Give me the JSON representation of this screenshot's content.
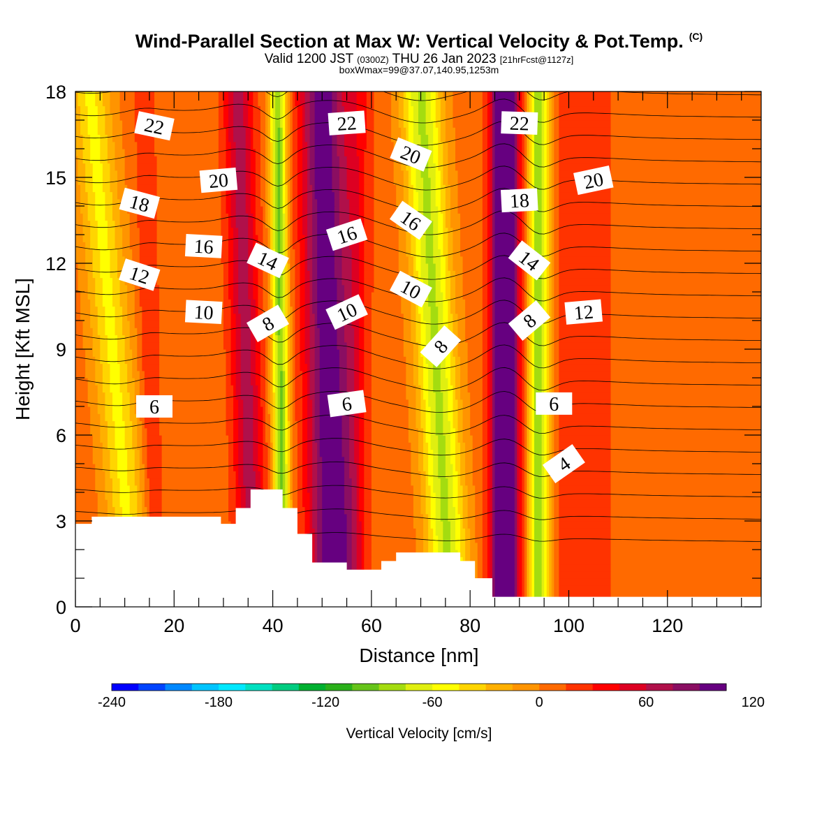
{
  "title": {
    "main": "Wind-Parallel Section at Max W: Vertical Velocity & Pot.Temp.",
    "copyright": "(C)",
    "valid_prefix": "Valid 1200 JST",
    "zulu": "(0300Z)",
    "valid_date": "THU 26 Jan 2023",
    "forecast": "[21hrFcst@1127z]",
    "boxinfo": "boxWmax=99@37.07,140.95,1253m"
  },
  "colorbar": {
    "label": "Vertical Velocity [cm/s]",
    "tick_labels": [
      "-240",
      "-180",
      "-120",
      "-60",
      "0",
      "60",
      "120"
    ],
    "min": -240,
    "step": 15,
    "colors": [
      "#0000ff",
      "#0044ff",
      "#0088ff",
      "#00c4ff",
      "#00e8ff",
      "#00e0c0",
      "#00cc80",
      "#00b030",
      "#2ab01a",
      "#66c41a",
      "#a4dc10",
      "#e0ef10",
      "#ffff00",
      "#ffd500",
      "#ffb000",
      "#ff9400",
      "#ff6a00",
      "#ff3300",
      "#ff0000",
      "#dd0022",
      "#b0104a",
      "#8a0e62",
      "#660080"
    ]
  },
  "chart_data": {
    "type": "heatmap",
    "title": "Wind-Parallel Section at Max W: Vertical Velocity & Pot.Temp.",
    "xlabel": "Distance [nm]",
    "ylabel": "Height [Kft MSL]",
    "xlim": [
      0,
      139
    ],
    "ylim": [
      0,
      18
    ],
    "xticks": [
      0,
      20,
      40,
      60,
      80,
      100,
      120
    ],
    "yticks": [
      0,
      3,
      6,
      9,
      12,
      15,
      18
    ],
    "fill_variable": "Vertical Velocity [cm/s]",
    "background_value": 7,
    "velocity_bands": [
      {
        "x_top": 33,
        "x_bottom": 36,
        "sigma": 3,
        "peak": 60
      },
      {
        "x_top": 41,
        "x_bottom": 42,
        "sigma": 1.7,
        "peak": -100
      },
      {
        "x_top": 50,
        "x_bottom": 52,
        "sigma": 4.5,
        "peak": 95
      },
      {
        "x_top": 57,
        "x_bottom": 56,
        "sigma": 3,
        "peak": 30
      },
      {
        "x_top": 70,
        "x_bottom": 76,
        "sigma": 4,
        "peak": -85
      },
      {
        "x_top": 87,
        "x_bottom": 87,
        "sigma": 2.8,
        "peak": 135
      },
      {
        "x_top": 94,
        "x_bottom": 94,
        "sigma": 2.2,
        "peak": -95
      },
      {
        "x_top": 103,
        "x_bottom": 103,
        "sigma": 6,
        "peak": 20
      },
      {
        "x_top": 3,
        "x_bottom": 12,
        "sigma": 4,
        "peak": -55
      },
      {
        "x_top": 14,
        "x_bottom": 16,
        "sigma": 2,
        "peak": 22
      }
    ],
    "terrain": [
      [
        0,
        2.9
      ],
      [
        3.3,
        3.15
      ],
      [
        29.5,
        2.9
      ],
      [
        32.5,
        3.45
      ],
      [
        35.5,
        4.1
      ],
      [
        42,
        3.45
      ],
      [
        45,
        2.55
      ],
      [
        48,
        1.55
      ],
      [
        55,
        1.3
      ],
      [
        62,
        1.6
      ],
      [
        65,
        1.9
      ],
      [
        78,
        1.6
      ],
      [
        81,
        1.0
      ],
      [
        84.5,
        0.35
      ],
      [
        139,
        0.35
      ]
    ],
    "terrain_fill": "#ffffff",
    "theta_contours": {
      "variable": "Pot.Temp. (C)",
      "interval": 1,
      "min": 2,
      "max": 24,
      "labels": [
        {
          "value": "22",
          "x": 16,
          "y": 16.8,
          "angle": 12
        },
        {
          "value": "22",
          "x": 55,
          "y": 16.9,
          "angle": -4
        },
        {
          "value": "22",
          "x": 90,
          "y": 16.9,
          "angle": 2
        },
        {
          "value": "20",
          "x": 29,
          "y": 14.9,
          "angle": -5
        },
        {
          "value": "20",
          "x": 68,
          "y": 15.8,
          "angle": 22
        },
        {
          "value": "20",
          "x": 105,
          "y": 14.9,
          "angle": -12
        },
        {
          "value": "18",
          "x": 13,
          "y": 14.1,
          "angle": 15
        },
        {
          "value": "18",
          "x": 90,
          "y": 14.2,
          "angle": -3
        },
        {
          "value": "16",
          "x": 26,
          "y": 12.6,
          "angle": 3
        },
        {
          "value": "16",
          "x": 55,
          "y": 13.0,
          "angle": -18
        },
        {
          "value": "16",
          "x": 68,
          "y": 13.5,
          "angle": 35
        },
        {
          "value": "14",
          "x": 39,
          "y": 12.1,
          "angle": 25
        },
        {
          "value": "14",
          "x": 92,
          "y": 12.1,
          "angle": 38
        },
        {
          "value": "12",
          "x": 13,
          "y": 11.6,
          "angle": 18
        },
        {
          "value": "12",
          "x": 103,
          "y": 10.3,
          "angle": -5
        },
        {
          "value": "10",
          "x": 26,
          "y": 10.3,
          "angle": 3
        },
        {
          "value": "10",
          "x": 55,
          "y": 10.3,
          "angle": -25
        },
        {
          "value": "10",
          "x": 68,
          "y": 11.1,
          "angle": 28
        },
        {
          "value": "8",
          "x": 39,
          "y": 9.9,
          "angle": -30
        },
        {
          "value": "8",
          "x": 74,
          "y": 9.1,
          "angle": -48
        },
        {
          "value": "8",
          "x": 92,
          "y": 10.0,
          "angle": -40
        },
        {
          "value": "6",
          "x": 16,
          "y": 7.0,
          "angle": 0
        },
        {
          "value": "6",
          "x": 55,
          "y": 7.1,
          "angle": -8
        },
        {
          "value": "6",
          "x": 97,
          "y": 7.1,
          "angle": 0
        },
        {
          "value": "4",
          "x": 99,
          "y": 5.0,
          "angle": -35
        }
      ]
    }
  }
}
